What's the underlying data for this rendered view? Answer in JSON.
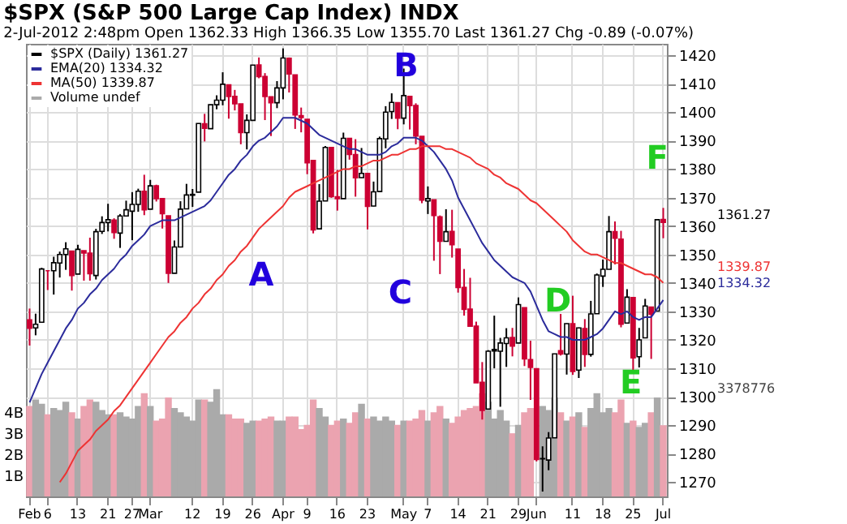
{
  "chart_data": {
    "type": "candlestick",
    "title": "$SPX (S&P 500 Large Cap Index) INDX",
    "subtitle": "2-Jul-2012 2:48pm      Open 1362.33  High 1366.35  Low 1355.70  Last 1361.27  Chg -0.89 (-0.07%)",
    "categories": [
      "Feb",
      null,
      null,
      "6",
      null,
      null,
      null,
      null,
      "13",
      null,
      null,
      null,
      null,
      "21",
      null,
      null,
      null,
      "27",
      null,
      null,
      "Mar",
      null,
      null,
      null,
      null,
      null,
      null,
      "12",
      null,
      null,
      null,
      null,
      "19",
      null,
      null,
      null,
      null,
      "26",
      null,
      null,
      null,
      null,
      "Apr",
      null,
      null,
      null,
      "9",
      null,
      null,
      null,
      null,
      "16",
      null,
      null,
      null,
      null,
      "23",
      null,
      null,
      null,
      null,
      null,
      "May",
      null,
      null,
      null,
      "7",
      null,
      null,
      null,
      null,
      "14",
      null,
      null,
      null,
      null,
      "21",
      null,
      null,
      null,
      null,
      "29",
      null,
      null,
      "Jun",
      null,
      null,
      null,
      null,
      null,
      "11",
      null,
      null,
      null,
      null,
      "18",
      null,
      null,
      null,
      null,
      "25",
      null,
      null,
      null,
      null,
      "Jul"
    ],
    "series": [
      {
        "name": "$SPX (Daily) 1361.27",
        "type": "candlestick",
        "ohlc": [
          [
            1327,
            1331,
            1318,
            1324.1
          ],
          [
            1324.2,
            1329.2,
            1321.6,
            1325.5
          ],
          [
            1326.2,
            1345.3,
            1326.2,
            1344.9
          ],
          [
            1344.3,
            1344.4,
            1337.5,
            1344.3
          ],
          [
            1344.3,
            1349.2,
            1335.9,
            1347.1
          ],
          [
            1347.0,
            1351.0,
            1341.9,
            1350.0
          ],
          [
            1350.0,
            1354.3,
            1344.6,
            1352.0
          ],
          [
            1351.2,
            1351.2,
            1337.3,
            1342.6
          ],
          [
            1343.1,
            1353.4,
            1343.1,
            1351.8
          ],
          [
            1351.3,
            1351.3,
            1340.8,
            1350.5
          ],
          [
            1350.5,
            1355.9,
            1340.8,
            1343.2
          ],
          [
            1342.6,
            1359.0,
            1341.2,
            1358.0
          ],
          [
            1358.1,
            1363.4,
            1357.2,
            1361.2
          ],
          [
            1361.2,
            1367.8,
            1358.1,
            1362.2
          ],
          [
            1362.1,
            1362.7,
            1355.5,
            1357.7
          ],
          [
            1357.5,
            1364.2,
            1352.3,
            1363.5
          ],
          [
            1363.5,
            1368.9,
            1363.5,
            1365.7
          ],
          [
            1365.2,
            1371.9,
            1355.0,
            1367.6
          ],
          [
            1367.6,
            1373.1,
            1365.0,
            1372.2
          ],
          [
            1372.2,
            1378.0,
            1363.8,
            1365.7
          ],
          [
            1365.9,
            1376.2,
            1365.9,
            1374.1
          ],
          [
            1374.1,
            1374.5,
            1368.6,
            1369.6
          ],
          [
            1369.6,
            1369.6,
            1359.1,
            1364.3
          ],
          [
            1363.6,
            1363.6,
            1340.0,
            1343.4
          ],
          [
            1343.4,
            1354.9,
            1343.4,
            1352.6
          ],
          [
            1352.6,
            1368.7,
            1352.6,
            1365.9
          ],
          [
            1366.0,
            1374.8,
            1365.9,
            1370.9
          ],
          [
            1370.8,
            1373.0,
            1366.7,
            1371.1
          ],
          [
            1371.9,
            1396.1,
            1371.9,
            1396.0
          ],
          [
            1395.9,
            1399.4,
            1389.7,
            1394.3
          ],
          [
            1394.2,
            1402.6,
            1394.2,
            1402.6
          ],
          [
            1402.6,
            1405.9,
            1401.0,
            1404.2
          ],
          [
            1404.2,
            1414.0,
            1402.4,
            1409.8
          ],
          [
            1409.6,
            1409.6,
            1397.7,
            1405.5
          ],
          [
            1405.5,
            1407.8,
            1400.6,
            1402.9
          ],
          [
            1402.9,
            1402.9,
            1388.7,
            1392.8
          ],
          [
            1392.8,
            1399.2,
            1386.9,
            1397.1
          ],
          [
            1397.1,
            1416.6,
            1397.1,
            1416.5
          ],
          [
            1416.6,
            1419.2,
            1411.9,
            1412.5
          ],
          [
            1412.5,
            1413.7,
            1397.2,
            1405.5
          ],
          [
            1405.4,
            1405.4,
            1391.6,
            1403.3
          ],
          [
            1403.3,
            1410.9,
            1401.4,
            1408.5
          ],
          [
            1408.5,
            1422.4,
            1404.5,
            1419.0
          ],
          [
            1418.9,
            1419.2,
            1406.9,
            1413.4
          ],
          [
            1413.1,
            1413.1,
            1394.1,
            1399.0
          ],
          [
            1398.8,
            1401.6,
            1392.9,
            1398.1
          ],
          [
            1397.5,
            1397.5,
            1378.2,
            1382.2
          ],
          [
            1383.0,
            1383.0,
            1357.4,
            1358.6
          ],
          [
            1359.0,
            1374.7,
            1359.0,
            1368.7
          ],
          [
            1368.8,
            1388.1,
            1368.8,
            1387.6
          ],
          [
            1387.6,
            1387.6,
            1369.9,
            1370.3
          ],
          [
            1370.3,
            1379.7,
            1365.4,
            1369.6
          ],
          [
            1369.6,
            1392.8,
            1369.6,
            1390.8
          ],
          [
            1390.8,
            1390.8,
            1383.3,
            1385.1
          ],
          [
            1385.1,
            1390.5,
            1370.3,
            1376.9
          ],
          [
            1377.0,
            1387.4,
            1376.9,
            1378.5
          ],
          [
            1378.5,
            1378.5,
            1358.8,
            1366.9
          ],
          [
            1367.0,
            1375.6,
            1366.9,
            1372.0
          ],
          [
            1372.1,
            1391.4,
            1372.1,
            1390.7
          ],
          [
            1390.6,
            1402.1,
            1387.3,
            1400.0
          ],
          [
            1400.2,
            1406.6,
            1397.6,
            1403.4
          ],
          [
            1403.3,
            1403.3,
            1394.0,
            1397.9
          ],
          [
            1397.9,
            1415.3,
            1395.7,
            1405.8
          ],
          [
            1405.5,
            1405.5,
            1393.9,
            1402.3
          ],
          [
            1402.3,
            1403.1,
            1388.7,
            1391.6
          ],
          [
            1391.5,
            1391.5,
            1368.0,
            1369.1
          ],
          [
            1368.8,
            1373.9,
            1364.2,
            1369.6
          ],
          [
            1369.2,
            1369.2,
            1347.8,
            1363.7
          ],
          [
            1363.2,
            1363.7,
            1343.1,
            1354.6
          ],
          [
            1354.6,
            1365.9,
            1354.6,
            1358.0
          ],
          [
            1358.1,
            1365.7,
            1348.9,
            1353.4
          ],
          [
            1351.9,
            1351.9,
            1336.6,
            1338.4
          ],
          [
            1338.4,
            1344.9,
            1328.5,
            1330.7
          ],
          [
            1330.8,
            1341.8,
            1324.8,
            1324.8
          ],
          [
            1324.8,
            1326.4,
            1304.9,
            1304.9
          ],
          [
            1305.1,
            1312.2,
            1292.0,
            1295.2
          ],
          [
            1295.7,
            1316.4,
            1295.7,
            1316.0
          ],
          [
            1316.1,
            1328.5,
            1310.0,
            1316.6
          ],
          [
            1316.0,
            1320.7,
            1296.5,
            1318.9
          ],
          [
            1318.7,
            1324.1,
            1310.5,
            1320.7
          ],
          [
            1320.8,
            1324.2,
            1314.2,
            1317.8
          ],
          [
            1318.9,
            1334.9,
            1318.9,
            1332.4
          ],
          [
            1331.3,
            1331.3,
            1310.8,
            1313.3
          ],
          [
            1313.1,
            1319.7,
            1298.9,
            1310.3
          ],
          [
            1309.9,
            1309.9,
            1277.3,
            1278.0
          ],
          [
            1278.3,
            1282.6,
            1266.7,
            1278.2
          ],
          [
            1277.8,
            1287.6,
            1274.2,
            1285.5
          ],
          [
            1285.6,
            1315.1,
            1285.6,
            1315.1
          ],
          [
            1316.2,
            1329.1,
            1314.5,
            1315.0
          ],
          [
            1315.0,
            1325.8,
            1307.8,
            1325.7
          ],
          [
            1325.7,
            1335.5,
            1307.7,
            1308.9
          ],
          [
            1309.4,
            1324.3,
            1306.6,
            1324.2
          ],
          [
            1324.0,
            1327.3,
            1310.5,
            1314.9
          ],
          [
            1314.9,
            1333.7,
            1314.1,
            1329.1
          ],
          [
            1329.2,
            1343.3,
            1329.2,
            1342.8
          ],
          [
            1342.4,
            1348.2,
            1338.6,
            1344.8
          ],
          [
            1344.8,
            1363.5,
            1344.8,
            1358.0
          ],
          [
            1358.0,
            1361.6,
            1346.5,
            1355.7
          ],
          [
            1355.4,
            1358.3,
            1324.4,
            1325.5
          ],
          [
            1325.9,
            1337.8,
            1325.9,
            1335.0
          ],
          [
            1334.9,
            1334.9,
            1309.3,
            1313.7
          ],
          [
            1314.1,
            1324.2,
            1310.3,
            1320.0
          ],
          [
            1320.7,
            1334.4,
            1320.7,
            1331.9
          ],
          [
            1331.5,
            1331.5,
            1313.3,
            1329.0
          ],
          [
            1330.1,
            1362.2,
            1330.1,
            1362.2
          ],
          [
            1362.33,
            1366.35,
            1355.7,
            1361.27
          ]
        ]
      },
      {
        "name": "EMA(20) 1334.32",
        "type": "line",
        "color": "#2b2b9b",
        "values": [
          1298,
          1303,
          1308,
          1312,
          1316,
          1320,
          1324,
          1327,
          1331,
          1333,
          1336,
          1338,
          1341,
          1343,
          1345,
          1348,
          1350,
          1353,
          1355,
          1357,
          1360,
          1361,
          1362,
          1362,
          1362,
          1363,
          1364,
          1365,
          1366,
          1367,
          1369,
          1372,
          1375,
          1378,
          1380,
          1383,
          1385,
          1388,
          1390,
          1391,
          1393,
          1395,
          1398,
          1398,
          1398,
          1397,
          1396,
          1394,
          1392,
          1391,
          1390,
          1389,
          1388,
          1387,
          1387,
          1386,
          1385,
          1385,
          1385,
          1386,
          1388,
          1389,
          1391,
          1391,
          1391,
          1390,
          1388,
          1386,
          1383,
          1380,
          1376,
          1370,
          1366,
          1362,
          1358,
          1354,
          1351,
          1348,
          1346,
          1344,
          1342,
          1341,
          1340,
          1337,
          1332,
          1327,
          1323,
          1322,
          1321,
          1321,
          1320,
          1320,
          1320,
          1321,
          1322,
          1324,
          1327,
          1330,
          1329,
          1330,
          1328,
          1327,
          1328,
          1328,
          1331,
          1334
        ]
      },
      {
        "name": "MA(50) 1339.87",
        "type": "line",
        "color": "#ee3333",
        "values": [
          null,
          null,
          null,
          null,
          null,
          1270,
          1273,
          1277,
          1281,
          1283,
          1285,
          1288,
          1290,
          1292,
          1295,
          1297,
          1300,
          1303,
          1306,
          1309,
          1312,
          1315,
          1318,
          1321,
          1323,
          1326,
          1328,
          1331,
          1333,
          1336,
          1338,
          1341,
          1343,
          1346,
          1348,
          1351,
          1353,
          1356,
          1359,
          1361,
          1363,
          1365,
          1367,
          1370,
          1372,
          1373,
          1374,
          1375,
          1376,
          1377,
          1378,
          1379,
          1380,
          1380,
          1381,
          1381,
          1382,
          1383,
          1383,
          1384,
          1385,
          1385,
          1386,
          1387,
          1387,
          1388,
          1388,
          1388,
          1388,
          1387,
          1387,
          1386,
          1385,
          1384,
          1382,
          1381,
          1380,
          1378,
          1377,
          1375,
          1374,
          1373,
          1371,
          1369,
          1368,
          1366,
          1364,
          1362,
          1360,
          1358,
          1355,
          1353,
          1351,
          1350,
          1350,
          1349,
          1348,
          1347,
          1347,
          1346,
          1345,
          1344,
          1343,
          1343,
          1342,
          1340
        ]
      },
      {
        "name": "Volume undef",
        "type": "bar",
        "axis": "y2",
        "color": "#aaaaaa",
        "colors": [
          "#eba3b0",
          "#aaaaaa",
          "#aaaaaa",
          "#eba3b0",
          "#aaaaaa",
          "#aaaaaa",
          "#aaaaaa",
          "#eba3b0",
          "#aaaaaa",
          "#eba3b0",
          "#eba3b0",
          "#aaaaaa",
          "#aaaaaa",
          "#aaaaaa",
          "#eba3b0",
          "#aaaaaa",
          "#aaaaaa",
          "#aaaaaa",
          "#aaaaaa",
          "#eba3b0",
          "#aaaaaa",
          "#eba3b0",
          "#eba3b0",
          "#eba3b0",
          "#aaaaaa",
          "#aaaaaa",
          "#aaaaaa",
          "#aaaaaa",
          "#aaaaaa",
          "#eba3b0",
          "#aaaaaa",
          "#aaaaaa",
          "#aaaaaa",
          "#eba3b0",
          "#eba3b0",
          "#eba3b0",
          "#aaaaaa",
          "#aaaaaa",
          "#eba3b0",
          "#eba3b0",
          "#eba3b0",
          "#aaaaaa",
          "#aaaaaa",
          "#eba3b0",
          "#eba3b0",
          "#eba3b0",
          "#eba3b0",
          "#eba3b0",
          "#aaaaaa",
          "#aaaaaa",
          "#eba3b0",
          "#eba3b0",
          "#aaaaaa",
          "#eba3b0",
          "#eba3b0",
          "#aaaaaa",
          "#eba3b0",
          "#aaaaaa",
          "#aaaaaa",
          "#aaaaaa",
          "#aaaaaa",
          "#eba3b0",
          "#aaaaaa",
          "#eba3b0",
          "#eba3b0",
          "#eba3b0",
          "#aaaaaa",
          "#eba3b0",
          "#eba3b0",
          "#aaaaaa",
          "#eba3b0",
          "#eba3b0",
          "#eba3b0",
          "#eba3b0",
          "#eba3b0",
          "#eba3b0",
          "#aaaaaa",
          "#aaaaaa",
          "#aaaaaa",
          "#aaaaaa",
          "#eba3b0",
          "#aaaaaa",
          "#eba3b0",
          "#eba3b0",
          "#eba3b0",
          "#aaaaaa",
          "#aaaaaa",
          "#aaaaaa",
          "#eba3b0",
          "#aaaaaa",
          "#eba3b0",
          "#aaaaaa",
          "#eba3b0",
          "#aaaaaa",
          "#aaaaaa",
          "#aaaaaa",
          "#aaaaaa",
          "#eba3b0",
          "#eba3b0",
          "#aaaaaa",
          "#eba3b0",
          "#aaaaaa",
          "#aaaaaa",
          "#eba3b0",
          "#aaaaaa",
          "#eba3b0"
        ],
        "values": [
          4.3,
          4.6,
          4.4,
          3.9,
          4.2,
          4.1,
          4.5,
          4.0,
          3.7,
          4.3,
          4.6,
          4.5,
          4.1,
          3.9,
          3.9,
          4.0,
          3.8,
          3.7,
          4.3,
          4.9,
          4.3,
          3.6,
          3.7,
          4.7,
          4.2,
          4.0,
          3.8,
          3.6,
          4.6,
          4.6,
          4.5,
          5.1,
          3.9,
          3.9,
          3.7,
          3.7,
          3.5,
          3.6,
          3.6,
          3.7,
          3.8,
          3.6,
          3.6,
          3.8,
          3.8,
          3.2,
          3.4,
          4.6,
          4.2,
          3.8,
          3.4,
          3.6,
          3.7,
          3.5,
          4.0,
          4.4,
          3.7,
          3.8,
          3.6,
          3.8,
          3.6,
          3.4,
          3.6,
          3.6,
          3.7,
          4.1,
          3.6,
          4.0,
          4.3,
          3.7,
          3.5,
          3.8,
          4.1,
          4.2,
          4.3,
          4.9,
          4.5,
          3.7,
          4.1,
          3.6,
          3.0,
          3.4,
          4.0,
          4.2,
          null,
          4.3,
          4.1,
          4.7,
          4.0,
          3.6,
          3.8,
          4.0,
          3.3,
          4.2,
          4.9,
          4.0,
          4.2,
          4.0,
          4.6,
          3.5,
          3.6,
          3.3,
          3.5,
          4.0,
          4.7,
          3.38
        ]
      }
    ],
    "ylim": [
      1265,
      1424
    ],
    "yticks": [
      1270,
      1280,
      1290,
      1300,
      1310,
      1320,
      1330,
      1340,
      1350,
      1360,
      1370,
      1380,
      1390,
      1400,
      1410,
      1420
    ],
    "y2lim": [
      0,
      21.5
    ],
    "y2ticks": [
      {
        "value": 1,
        "label": "1B"
      },
      {
        "value": 2,
        "label": "2B"
      },
      {
        "value": 3,
        "label": "3B"
      },
      {
        "value": 4,
        "label": "4B"
      }
    ],
    "grid": true,
    "legend": "top left",
    "annotations": [
      "A",
      "B",
      "C",
      "D",
      "E",
      "F",
      "1361.27",
      "1339.87",
      "1334.32",
      "3378776"
    ]
  }
}
